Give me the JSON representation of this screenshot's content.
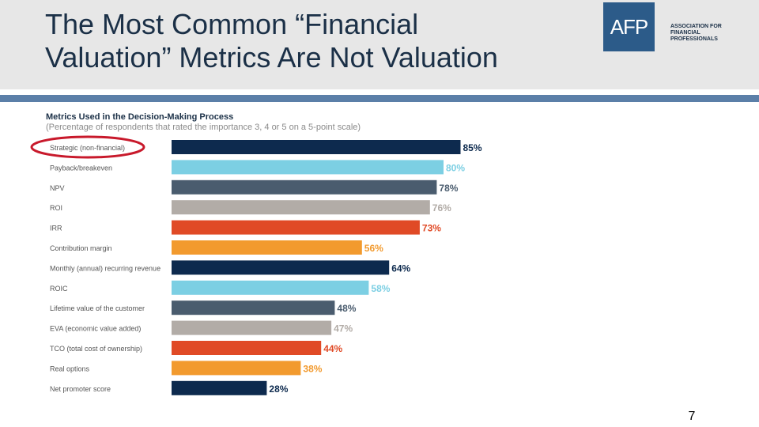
{
  "slide": {
    "title_line1": "The Most Common “Financial",
    "title_line2": "Valuation” Metrics Are Not Valuation",
    "page_number": "7"
  },
  "logo": {
    "mark": "AFP",
    "line1": "ASSOCIATION FOR",
    "line2": "FINANCIAL",
    "line3": "PROFESSIONALS"
  },
  "colors": {
    "navy": "#0d2a4e",
    "sky": "#7ccfe3",
    "slate": "#4a5c6e",
    "gray": "#b2aca7",
    "red": "#e04a26",
    "orange": "#f29a2e",
    "highlight": "#c8192b"
  },
  "chart_data": {
    "type": "bar",
    "orientation": "horizontal",
    "title": "Metrics Used in the Decision-Making Process",
    "subtitle": "(Percentage of respondents that rated the importance 3, 4 or 5 on a 5-point scale)",
    "categories": [
      "Strategic (non-financial)",
      "Payback/breakeven",
      "NPV",
      "ROI",
      "IRR",
      "Contribution margin",
      "Monthly (annual) recurring revenue",
      "ROIC",
      "Lifetime value of the customer",
      "EVA (economic value added)",
      "TCO (total cost of ownership)",
      "Real options",
      "Net promoter score"
    ],
    "values": [
      85,
      80,
      78,
      76,
      73,
      56,
      64,
      58,
      48,
      47,
      44,
      38,
      28
    ],
    "value_labels": [
      "85%",
      "80%",
      "78%",
      "76%",
      "73%",
      "56%",
      "64%",
      "58%",
      "48%",
      "47%",
      "44%",
      "38%",
      "28%"
    ],
    "bar_colors": [
      "navy",
      "sky",
      "slate",
      "gray",
      "red",
      "orange",
      "navy",
      "sky",
      "slate",
      "gray",
      "red",
      "orange",
      "navy"
    ],
    "highlighted_category": "Strategic (non-financial)",
    "xlim": [
      0,
      100
    ],
    "grid": false,
    "legend": "none"
  }
}
